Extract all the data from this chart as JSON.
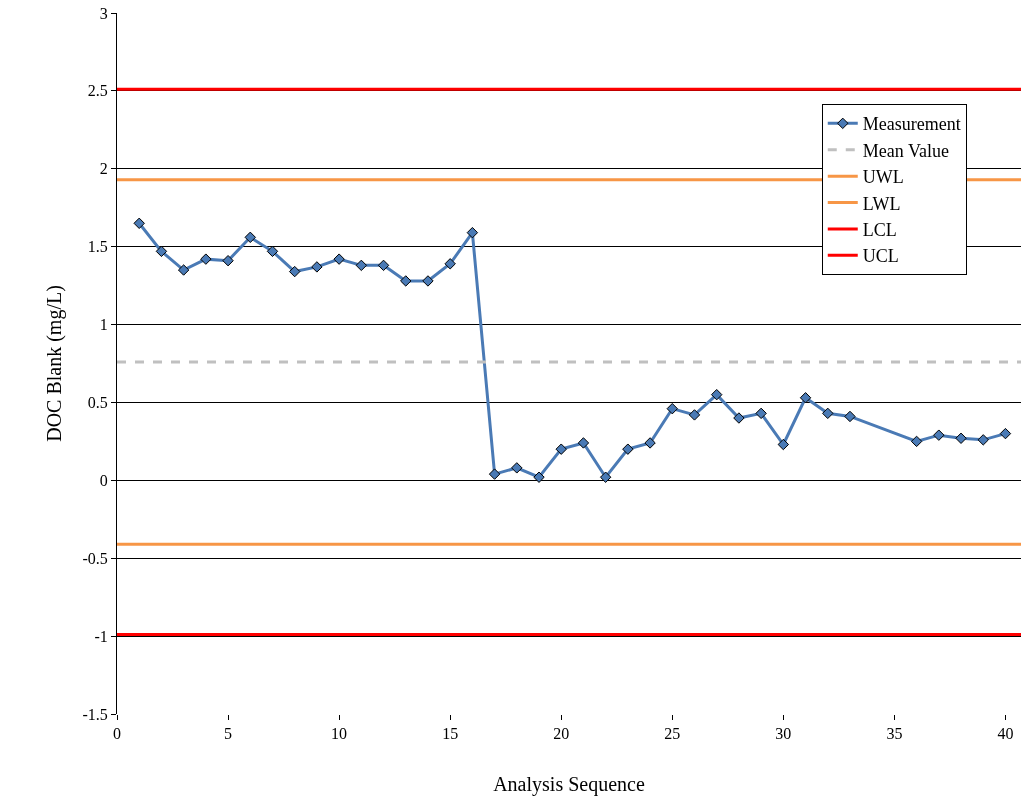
{
  "chart_data": {
    "type": "line",
    "xlabel": "Analysis Sequence",
    "ylabel": "DOC Blank (mg/L)",
    "xlim": [
      0,
      40.7
    ],
    "xticks": [
      0,
      5,
      10,
      15,
      20,
      25,
      30,
      35,
      40
    ],
    "ylim": [
      -1.5,
      3
    ],
    "yticks": [
      -1.5,
      -1,
      -0.5,
      0,
      0.5,
      1,
      1.5,
      2,
      2.5,
      3
    ],
    "grid": "y",
    "legend": "top right",
    "series": [
      {
        "name": "Measurement",
        "color": "#4a7ab5",
        "marker": "diamond",
        "line_style": "solid",
        "x": [
          1,
          2,
          3,
          4,
          5,
          6,
          7,
          8,
          9,
          10,
          11,
          12,
          13,
          14,
          15,
          16,
          17,
          18,
          19,
          20,
          21,
          22,
          23,
          24,
          25,
          26,
          27,
          28,
          29,
          30,
          31,
          32,
          33,
          36,
          37,
          38,
          39,
          40
        ],
        "values": [
          1.65,
          1.47,
          1.35,
          1.42,
          1.41,
          1.56,
          1.47,
          1.34,
          1.37,
          1.42,
          1.38,
          1.38,
          1.28,
          1.28,
          1.39,
          1.59,
          0.04,
          0.08,
          0.02,
          0.2,
          0.24,
          0.02,
          0.2,
          0.24,
          0.46,
          0.42,
          0.55,
          0.4,
          0.43,
          0.23,
          0.53,
          0.43,
          0.41,
          0.25,
          0.29,
          0.27,
          0.26,
          0.3
        ]
      },
      {
        "name": "Mean Value",
        "color": "#c0c0c0",
        "marker": "none",
        "line_style": "dashed",
        "x": [
          0,
          40.7
        ],
        "values": [
          0.76,
          0.76
        ]
      },
      {
        "name": "UWL",
        "color": "#f79646",
        "marker": "none",
        "line_style": "solid",
        "x": [
          0,
          40.7
        ],
        "values": [
          1.93,
          1.93
        ]
      },
      {
        "name": "LWL",
        "color": "#f79646",
        "marker": "none",
        "line_style": "solid",
        "x": [
          0,
          40.7
        ],
        "values": [
          -0.41,
          -0.41
        ]
      },
      {
        "name": "LCL",
        "color": "#ff0000",
        "marker": "none",
        "line_style": "solid",
        "x": [
          0,
          40.7
        ],
        "values": [
          -0.99,
          -0.99
        ]
      },
      {
        "name": "UCL",
        "color": "#ff0000",
        "marker": "none",
        "line_style": "solid",
        "x": [
          0,
          40.7
        ],
        "values": [
          2.51,
          2.51
        ]
      }
    ]
  }
}
